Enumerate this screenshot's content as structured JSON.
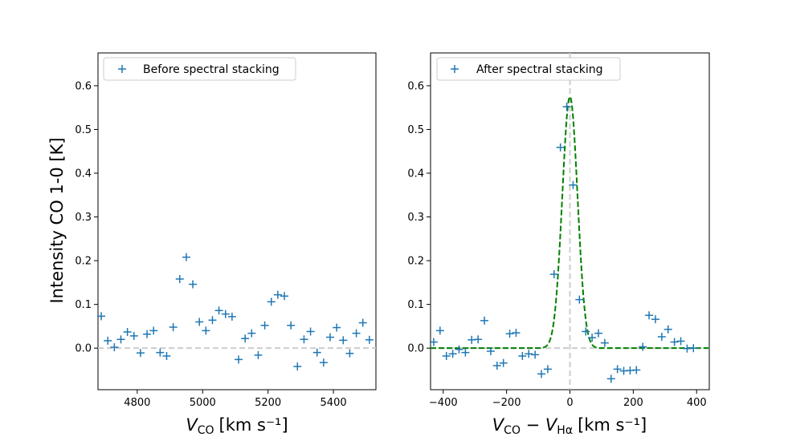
{
  "colors": {
    "marker": "#1f77b4",
    "fit_line": "#008000",
    "reference_line": "#cccccc",
    "axis": "#000000",
    "legend_border": "#cccccc"
  },
  "shared_ylabel": "Intensity CO 1-0 [K]",
  "chart_data": [
    {
      "type": "scatter",
      "marker": "+",
      "legend": "Before spectral stacking",
      "legend_location": "top-left",
      "xlabel": {
        "main": "V",
        "sub": "CO",
        "unit": "[km s⁻¹]"
      },
      "xlim": [
        4680,
        5530
      ],
      "ylim": [
        -0.095,
        0.675
      ],
      "xticks": [
        4800,
        5000,
        5200,
        5400
      ],
      "yticks": [
        0.0,
        0.1,
        0.2,
        0.3,
        0.4,
        0.5,
        0.6
      ],
      "hline": 0.0,
      "x": [
        4690,
        4710,
        4730,
        4750,
        4770,
        4790,
        4810,
        4830,
        4850,
        4870,
        4890,
        4910,
        4930,
        4950,
        4970,
        4990,
        5010,
        5030,
        5050,
        5070,
        5090,
        5110,
        5130,
        5150,
        5170,
        5190,
        5210,
        5230,
        5250,
        5270,
        5290,
        5310,
        5330,
        5350,
        5370,
        5390,
        5410,
        5430,
        5450,
        5470,
        5490,
        5510
      ],
      "y": [
        0.073,
        0.017,
        0.002,
        0.02,
        0.037,
        0.028,
        -0.011,
        0.032,
        0.04,
        -0.01,
        -0.018,
        0.048,
        0.158,
        0.208,
        0.146,
        0.06,
        0.04,
        0.064,
        0.086,
        0.078,
        0.072,
        -0.026,
        0.022,
        0.034,
        -0.016,
        0.052,
        0.106,
        0.122,
        0.119,
        0.052,
        -0.042,
        0.02,
        0.038,
        -0.01,
        -0.033,
        0.025,
        0.047,
        0.018,
        -0.012,
        0.034,
        0.058,
        0.019
      ]
    },
    {
      "type": "scatter",
      "marker": "+",
      "legend": "After spectral stacking",
      "legend_location": "top-left",
      "xlabel": {
        "main": "V",
        "sub": "CO",
        "minus": " − ",
        "main2": "V",
        "sub2": "Hα",
        "unit": "[km s⁻¹]"
      },
      "xlim": [
        -440,
        440
      ],
      "ylim": [
        -0.095,
        0.675
      ],
      "xticks": [
        -400,
        -200,
        0,
        200,
        400
      ],
      "yticks": [
        0.0,
        0.1,
        0.2,
        0.3,
        0.4,
        0.5,
        0.6
      ],
      "hline": 0.0,
      "vline": 0,
      "x": [
        -430,
        -410,
        -390,
        -370,
        -350,
        -330,
        -310,
        -290,
        -270,
        -250,
        -230,
        -210,
        -190,
        -170,
        -150,
        -130,
        -110,
        -90,
        -70,
        -50,
        -30,
        -10,
        10,
        30,
        50,
        70,
        90,
        110,
        130,
        150,
        170,
        190,
        210,
        230,
        250,
        270,
        290,
        310,
        330,
        350,
        370,
        390
      ],
      "y": [
        0.014,
        0.04,
        -0.018,
        -0.013,
        -0.003,
        -0.01,
        0.019,
        0.02,
        0.063,
        -0.007,
        -0.04,
        -0.034,
        0.033,
        0.035,
        -0.018,
        -0.013,
        -0.015,
        -0.059,
        -0.048,
        0.169,
        0.459,
        0.552,
        0.373,
        0.111,
        0.038,
        0.024,
        0.034,
        0.012,
        -0.07,
        -0.048,
        -0.052,
        -0.051,
        -0.05,
        0.003,
        0.075,
        0.066,
        0.026,
        0.043,
        0.014,
        0.016,
        -0.001,
        0.0
      ],
      "fit": {
        "type": "gaussian",
        "amplitude": 0.575,
        "center": 0,
        "sigma": 24,
        "line_style": "dashed"
      }
    }
  ]
}
